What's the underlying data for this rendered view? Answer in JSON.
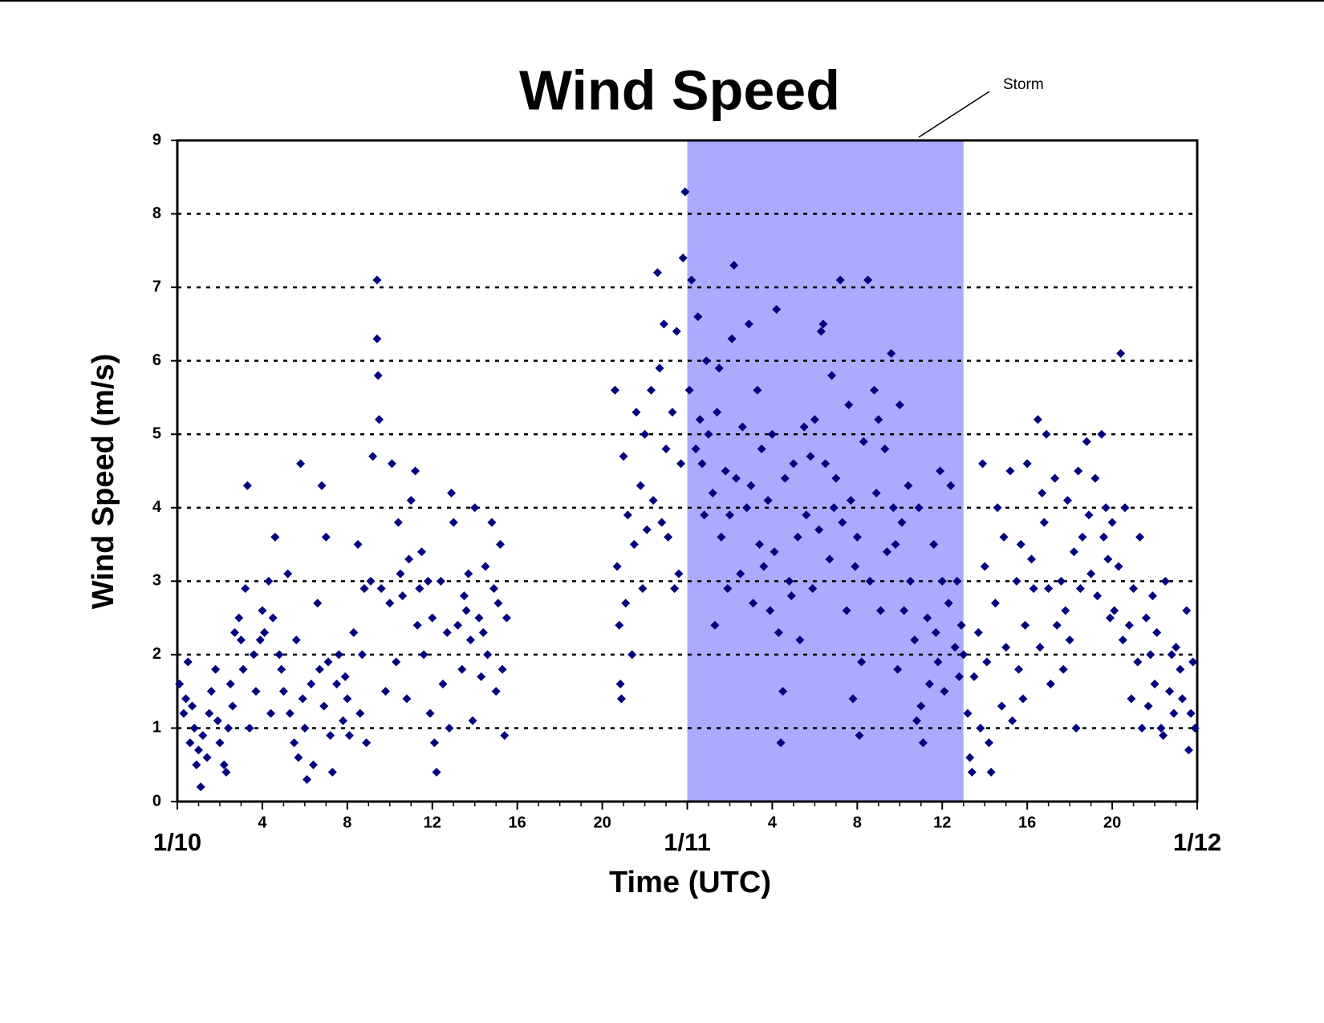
{
  "chart_data": {
    "type": "scatter",
    "title": "Wind Speed",
    "xlabel": "Time (UTC)",
    "ylabel": "Wind Speed (m/s)",
    "annotation": "Storm",
    "shaded_region": {
      "x": [
        24,
        37
      ],
      "color": "#aaaaff"
    },
    "color": "#000080",
    "xlim": [
      0,
      48
    ],
    "ylim": [
      0,
      9
    ],
    "xticks": [
      {
        "value": 0,
        "label": "1/10"
      },
      4,
      8,
      12,
      16,
      20,
      {
        "value": 24,
        "label": "1/11"
      },
      {
        "value": 28,
        "label": "4"
      },
      {
        "value": 32,
        "label": "8"
      },
      {
        "value": 36,
        "label": "12"
      },
      {
        "value": 40,
        "label": "16"
      },
      {
        "value": 44,
        "label": "20"
      },
      {
        "value": 48,
        "label": "1/12"
      }
    ],
    "minor_xticks": [
      1,
      2,
      3,
      5,
      6,
      7,
      9,
      10,
      11,
      13,
      14,
      15,
      17,
      18,
      19,
      21,
      22,
      23,
      25,
      26,
      27,
      29,
      30,
      31,
      33,
      34,
      35,
      37,
      38,
      39,
      41,
      42,
      43,
      45,
      46,
      47
    ],
    "yticks": [
      0,
      1,
      2,
      3,
      4,
      5,
      6,
      7,
      8,
      9
    ],
    "grid": true,
    "x": [
      0.1,
      0.3,
      0.5,
      0.6,
      0.8,
      0.9,
      0.4,
      0.7,
      1.0,
      1.1,
      1.2,
      1.4,
      1.5,
      1.6,
      1.8,
      1.9,
      2.0,
      2.2,
      2.3,
      2.4,
      2.5,
      2.6,
      2.7,
      2.9,
      3.0,
      3.1,
      3.2,
      3.3,
      3.4,
      3.6,
      3.7,
      3.9,
      4.0,
      4.1,
      4.3,
      4.4,
      4.5,
      4.6,
      4.8,
      4.9,
      5.0,
      5.2,
      5.3,
      5.5,
      5.6,
      5.8,
      5.9,
      5.7,
      6.0,
      6.1,
      6.3,
      6.4,
      6.6,
      6.7,
      6.8,
      6.9,
      7.0,
      7.1,
      7.2,
      7.3,
      7.5,
      7.6,
      7.8,
      7.9,
      8.0,
      8.1,
      8.3,
      8.5,
      8.6,
      8.8,
      8.9,
      8.7,
      9.1,
      9.2,
      9.4,
      9.4,
      9.45,
      9.5,
      9.6,
      9.8,
      10.0,
      10.1,
      10.3,
      10.4,
      10.6,
      10.8,
      10.9,
      10.5,
      11.0,
      11.2,
      11.3,
      11.5,
      11.6,
      11.8,
      11.9,
      11.4,
      12.0,
      12.1,
      12.2,
      12.4,
      12.5,
      12.7,
      12.9,
      12.8,
      13.0,
      13.2,
      13.4,
      13.5,
      13.7,
      13.8,
      13.9,
      13.6,
      14.0,
      14.2,
      14.3,
      14.5,
      14.6,
      14.8,
      14.9,
      14.4,
      15.0,
      15.1,
      15.2,
      15.3,
      15.4,
      15.5,
      20.6,
      20.7,
      20.8,
      20.9,
      20.85,
      21.0,
      21.1,
      21.2,
      21.4,
      21.5,
      21.6,
      21.8,
      21.9,
      22.0,
      22.1,
      22.3,
      22.4,
      22.6,
      22.7,
      22.8,
      22.9,
      23.0,
      23.1,
      23.3,
      23.4,
      23.5,
      23.6,
      23.8,
      23.9,
      23.7,
      24.1,
      24.2,
      24.4,
      24.5,
      24.6,
      24.8,
      24.9,
      24.7,
      25.0,
      25.2,
      25.3,
      25.5,
      25.6,
      25.8,
      25.9,
      25.4,
      26.0,
      26.1,
      26.2,
      26.3,
      26.5,
      26.6,
      26.8,
      26.9,
      27.0,
      27.1,
      27.3,
      27.4,
      27.5,
      27.6,
      27.8,
      27.9,
      28.0,
      28.1,
      28.2,
      28.3,
      28.5,
      28.4,
      28.6,
      28.8,
      28.9,
      29.0,
      29.2,
      29.3,
      29.5,
      29.6,
      29.8,
      29.9,
      30.0,
      30.2,
      30.3,
      30.4,
      30.5,
      30.7,
      30.8,
      30.9,
      31.0,
      31.2,
      31.3,
      31.5,
      31.6,
      31.7,
      31.8,
      31.9,
      32.0,
      32.1,
      32.2,
      32.3,
      32.5,
      32.6,
      32.8,
      32.9,
      33.0,
      33.1,
      33.3,
      33.4,
      33.6,
      33.7,
      33.9,
      33.8,
      34.0,
      34.1,
      34.2,
      34.4,
      34.5,
      34.7,
      34.8,
      34.9,
      35.0,
      35.1,
      35.3,
      35.4,
      35.6,
      35.7,
      35.9,
      35.8,
      36.0,
      36.1,
      36.3,
      36.4,
      36.6,
      36.7,
      36.8,
      36.9,
      37.0,
      37.2,
      37.3,
      37.4,
      37.5,
      37.7,
      37.8,
      37.9,
      38.0,
      38.1,
      38.2,
      38.3,
      38.5,
      38.6,
      38.8,
      38.9,
      39.0,
      39.2,
      39.3,
      39.5,
      39.6,
      39.8,
      39.9,
      39.7,
      40.0,
      40.2,
      40.3,
      40.5,
      40.6,
      40.8,
      40.9,
      40.7,
      41.0,
      41.1,
      41.3,
      41.4,
      41.6,
      41.7,
      41.9,
      41.8,
      42.0,
      42.2,
      42.3,
      42.4,
      42.5,
      42.6,
      42.8,
      42.9,
      43.0,
      43.2,
      43.3,
      43.5,
      43.6,
      43.7,
      43.8,
      43.9,
      44.0,
      44.1,
      44.3,
      44.4,
      44.5,
      44.6,
      44.8,
      44.9,
      45.0,
      45.2,
      45.3,
      45.4,
      45.6,
      45.7,
      45.9,
      45.8,
      46.0,
      46.1,
      46.3,
      46.4,
      46.5,
      46.7,
      46.8,
      46.9,
      47.0,
      47.2,
      47.3,
      47.5,
      47.6,
      47.7,
      47.8,
      47.9
    ],
    "values": [
      1.6,
      1.2,
      1.9,
      0.8,
      1.0,
      0.5,
      1.4,
      1.3,
      0.7,
      0.2,
      0.9,
      0.6,
      1.2,
      1.5,
      1.8,
      1.1,
      0.8,
      0.5,
      0.4,
      1.0,
      1.6,
      1.3,
      2.3,
      2.5,
      2.2,
      1.8,
      2.9,
      4.3,
      1.0,
      2.0,
      1.5,
      2.2,
      2.6,
      2.3,
      3.0,
      1.2,
      2.5,
      3.6,
      2.0,
      1.8,
      1.5,
      3.1,
      1.2,
      0.8,
      2.2,
      4.6,
      1.4,
      0.6,
      1.0,
      0.3,
      1.6,
      0.5,
      2.7,
      1.8,
      4.3,
      1.3,
      3.6,
      1.9,
      0.9,
      0.4,
      1.6,
      2.0,
      1.1,
      1.7,
      1.4,
      0.9,
      2.3,
      3.5,
      1.2,
      2.9,
      0.8,
      2.0,
      3.0,
      4.7,
      7.1,
      6.3,
      5.8,
      5.2,
      2.9,
      1.5,
      2.7,
      4.6,
      1.9,
      3.8,
      2.8,
      1.4,
      3.3,
      3.1,
      4.1,
      4.5,
      2.4,
      3.4,
      2.0,
      3.0,
      1.2,
      2.9,
      2.5,
      0.8,
      0.4,
      3.0,
      1.6,
      2.3,
      4.2,
      1.0,
      3.8,
      2.4,
      1.8,
      2.8,
      3.1,
      2.2,
      1.1,
      2.6,
      4.0,
      2.5,
      1.7,
      3.2,
      2.0,
      3.8,
      2.9,
      2.3,
      1.5,
      2.7,
      3.5,
      1.8,
      0.9,
      2.5,
      5.6,
      3.2,
      2.4,
      1.4,
      1.6,
      4.7,
      2.7,
      3.9,
      2.0,
      3.5,
      5.3,
      4.3,
      2.9,
      5.0,
      3.7,
      5.6,
      4.1,
      7.2,
      5.9,
      3.8,
      6.5,
      4.8,
      3.6,
      5.3,
      2.9,
      6.4,
      3.1,
      7.4,
      8.3,
      4.6,
      5.6,
      7.1,
      4.8,
      6.6,
      5.2,
      3.9,
      6.0,
      4.6,
      5.0,
      4.2,
      2.4,
      5.9,
      3.6,
      4.5,
      2.9,
      5.3,
      3.9,
      6.3,
      7.3,
      4.4,
      3.1,
      5.1,
      4.0,
      6.5,
      4.3,
      2.7,
      5.6,
      3.5,
      4.8,
      3.2,
      4.1,
      2.6,
      5.0,
      3.4,
      6.7,
      2.3,
      1.5,
      0.8,
      4.4,
      3.0,
      2.8,
      4.6,
      3.6,
      2.2,
      5.1,
      3.9,
      4.7,
      2.9,
      5.2,
      3.7,
      6.4,
      6.5,
      4.6,
      3.3,
      5.8,
      4.0,
      4.4,
      7.1,
      3.8,
      2.6,
      5.4,
      4.1,
      1.4,
      3.2,
      3.6,
      0.9,
      1.9,
      4.9,
      7.1,
      3.0,
      5.6,
      4.2,
      5.2,
      2.6,
      4.8,
      3.4,
      6.1,
      4.0,
      1.8,
      3.5,
      5.4,
      3.8,
      2.6,
      4.3,
      3.0,
      2.2,
      1.1,
      4.0,
      1.3,
      0.8,
      2.5,
      1.6,
      3.5,
      2.3,
      4.5,
      1.9,
      3.0,
      1.5,
      2.7,
      4.3,
      2.1,
      3.0,
      1.7,
      2.4,
      2.0,
      1.2,
      0.6,
      0.4,
      1.7,
      2.3,
      1.0,
      4.6,
      3.2,
      1.9,
      0.8,
      0.4,
      2.7,
      4.0,
      1.3,
      3.6,
      2.1,
      4.5,
      1.1,
      3.0,
      1.8,
      1.4,
      2.4,
      3.5,
      4.6,
      3.3,
      2.9,
      5.2,
      2.1,
      3.8,
      5.0,
      4.2,
      2.9,
      1.6,
      4.4,
      2.4,
      3.0,
      1.8,
      4.1,
      2.6,
      2.2,
      3.4,
      1.0,
      4.5,
      2.9,
      3.6,
      4.9,
      3.9,
      3.1,
      4.4,
      2.8,
      5.0,
      3.6,
      4.0,
      3.3,
      2.5,
      3.8,
      2.6,
      3.2,
      6.1,
      2.2,
      4.0,
      2.4,
      1.4,
      2.9,
      1.9,
      3.6,
      1.0,
      2.5,
      1.3,
      2.8,
      2.0,
      1.6,
      2.3,
      1.0,
      0.9,
      3.0,
      1.5,
      2.0,
      1.2,
      2.1,
      1.8,
      1.4,
      2.6,
      0.7,
      1.2,
      1.9,
      1.0
    ]
  }
}
